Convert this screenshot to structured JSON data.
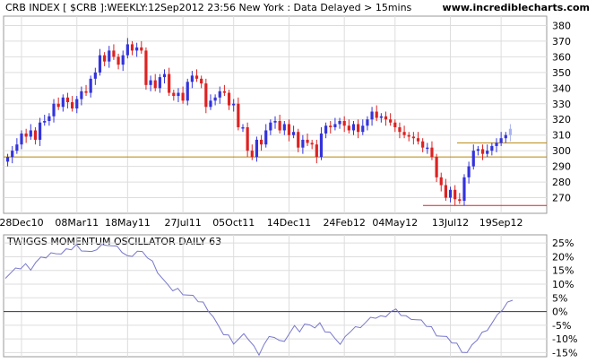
{
  "header": {
    "title": "CRB INDEX [ $CRB ]:WEEKLY:12Sep2012 23:56 New York : Data Delayed > 15mins",
    "site": "www.incrediblecharts.com"
  },
  "colors": {
    "up": "#3333dd",
    "down": "#dd2222",
    "support": "#b8860b",
    "target": "#dd2222",
    "last_bar": "#aab4ee",
    "oscillator": "#7777cc",
    "zero_line": "#333366",
    "grid": "#dddddd"
  },
  "chart_data": [
    {
      "type": "candlestick",
      "title": "CRB INDEX [ $CRB ]:WEEKLY:12Sep2012 23:56 New York : Data Delayed > 15mins",
      "x_tick_labels": [
        "28Dec10",
        "08Mar11",
        "18May11",
        "27Jul11",
        "05Oct11",
        "14Dec11",
        "24Feb12",
        "04May12",
        "13Jul12",
        "19Sep12"
      ],
      "y_ticks": [
        270,
        280,
        290,
        300,
        310,
        320,
        330,
        340,
        350,
        360,
        370,
        380
      ],
      "ylim": [
        260,
        386
      ],
      "grid": true,
      "horizontal_lines": [
        {
          "value": 296,
          "color": "support"
        },
        {
          "value": 305,
          "color": "support"
        },
        {
          "value": 265,
          "color": "target"
        }
      ],
      "closes": [
        296,
        300,
        304,
        311,
        309,
        313,
        307,
        318,
        319,
        322,
        330,
        328,
        334,
        331,
        327,
        333,
        338,
        337,
        346,
        350,
        361,
        357,
        364,
        360,
        355,
        361,
        368,
        364,
        366,
        364,
        342,
        345,
        340,
        347,
        349,
        337,
        335,
        337,
        332,
        344,
        348,
        346,
        343,
        328,
        332,
        334,
        338,
        337,
        329,
        330,
        315,
        315,
        300,
        296,
        307,
        304,
        313,
        318,
        319,
        313,
        317,
        310,
        312,
        302,
        307,
        305,
        304,
        296,
        311,
        316,
        315,
        317,
        319,
        316,
        313,
        317,
        312,
        316,
        320,
        325,
        321,
        322,
        320,
        318,
        315,
        312,
        310,
        309,
        308,
        306,
        302,
        302,
        296,
        283,
        278,
        270,
        275,
        269,
        268,
        283,
        290,
        300,
        301,
        298,
        300,
        303,
        305,
        308,
        310,
        314
      ],
      "scope": "weekly closes estimated from candle bodies (Dec 2010 – Sep 2012)"
    },
    {
      "type": "line",
      "title": "TWIGGS MOMENTUM OSCILLATOR DAILY 63",
      "y_tick_labels": [
        "25%",
        "20%",
        "15%",
        "10%",
        "5%",
        "0%",
        "-5%",
        "-10%",
        "-15%"
      ],
      "y_ticks": [
        25,
        20,
        15,
        10,
        5,
        0,
        -5,
        -10,
        -15
      ],
      "ylim": [
        -16.5,
        28
      ],
      "zero_line": 0,
      "values": [
        13,
        14,
        15,
        16,
        17,
        16,
        18,
        19,
        20,
        21,
        22,
        21,
        22,
        23,
        24,
        23,
        22,
        21,
        23,
        24,
        25,
        24,
        23,
        22,
        20,
        21,
        22,
        21,
        20,
        18,
        15,
        12,
        9,
        8,
        8,
        7,
        6,
        5,
        4,
        3,
        1,
        -2,
        -6,
        -8,
        -9,
        -11,
        -10,
        -9,
        -10,
        -13,
        -15,
        -12,
        -10,
        -9,
        -11,
        -10,
        -8,
        -6,
        -7,
        -5,
        -4,
        -6,
        -5,
        -7,
        -8,
        -9,
        -12,
        -10,
        -7,
        -6,
        -5,
        -4,
        -3,
        -2,
        -2,
        -1,
        0,
        0,
        -1,
        -2,
        -2,
        -3,
        -4,
        -5,
        -6,
        -8,
        -9,
        -10,
        -11,
        -12,
        -14,
        -15,
        -13,
        -10,
        -8,
        -6,
        -4,
        -2,
        1,
        3,
        5
      ]
    }
  ]
}
